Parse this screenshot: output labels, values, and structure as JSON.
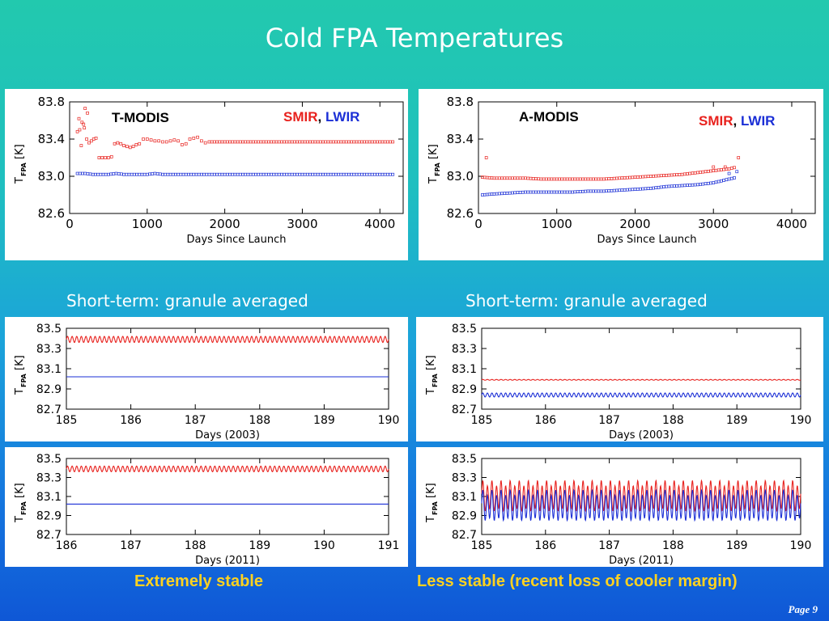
{
  "slide": {
    "title": "Cold FPA Temperatures",
    "page": "Page 9",
    "captions": {
      "left": "Extremely stable",
      "right": "Less stable (recent loss of cooler margin)"
    },
    "subtitles": {
      "left": "Short-term: granule averaged",
      "right": "Short-term: granule averaged"
    }
  },
  "colors": {
    "smir": "#e8221e",
    "lwir": "#1b2fd6",
    "caption": "#ffd21f"
  },
  "chart_data": [
    {
      "id": "tmodis-long",
      "type": "scatter",
      "instrument": "T-MODIS",
      "legend": {
        "smir": "SMIR",
        "sep": ",",
        "lwir": "LWIR"
      },
      "xlabel": "Days Since Launch",
      "ylabel_main": "T",
      "ylabel_sub": "FPA",
      "ylabel_unit": "[K]",
      "xlim": [
        0,
        4300
      ],
      "ylim": [
        82.6,
        83.8
      ],
      "xticks": [
        0,
        1000,
        2000,
        3000,
        4000
      ],
      "yticks": [
        "83.8",
        "83.4",
        "83.0",
        "82.6"
      ],
      "series": [
        {
          "name": "SMIR",
          "color": "#e8221e",
          "points": [
            [
              100,
              83.48
            ],
            [
              130,
              83.5
            ],
            [
              160,
              83.58
            ],
            [
              190,
              83.52
            ],
            [
              220,
              83.4
            ],
            [
              250,
              83.36
            ],
            [
              280,
              83.38
            ],
            [
              310,
              83.4
            ],
            [
              340,
              83.41
            ],
            [
              380,
              83.2
            ],
            [
              420,
              83.2
            ],
            [
              460,
              83.2
            ],
            [
              500,
              83.2
            ],
            [
              540,
              83.21
            ],
            [
              580,
              83.35
            ],
            [
              620,
              83.36
            ],
            [
              660,
              83.35
            ],
            [
              700,
              83.33
            ],
            [
              740,
              83.32
            ],
            [
              780,
              83.31
            ],
            [
              820,
              83.32
            ],
            [
              860,
              83.34
            ],
            [
              900,
              83.35
            ],
            [
              950,
              83.4
            ],
            [
              1000,
              83.4
            ],
            [
              1050,
              83.39
            ],
            [
              1100,
              83.38
            ],
            [
              1150,
              83.38
            ],
            [
              1200,
              83.37
            ],
            [
              1250,
              83.37
            ],
            [
              1300,
              83.38
            ],
            [
              1350,
              83.39
            ],
            [
              1400,
              83.38
            ],
            [
              1450,
              83.34
            ],
            [
              1500,
              83.35
            ],
            [
              1550,
              83.4
            ],
            [
              1600,
              83.41
            ],
            [
              1650,
              83.42
            ],
            [
              1700,
              83.38
            ],
            [
              1750,
              83.36
            ],
            [
              1800,
              83.37
            ],
            [
              1900,
              83.37
            ],
            [
              2000,
              83.37
            ],
            [
              2100,
              83.37
            ],
            [
              2200,
              83.37
            ],
            [
              2300,
              83.37
            ],
            [
              2400,
              83.37
            ],
            [
              2500,
              83.37
            ],
            [
              2600,
              83.37
            ],
            [
              2700,
              83.37
            ],
            [
              2800,
              83.37
            ],
            [
              2900,
              83.37
            ],
            [
              3000,
              83.37
            ],
            [
              3100,
              83.37
            ],
            [
              3200,
              83.37
            ],
            [
              3300,
              83.37
            ],
            [
              3400,
              83.37
            ],
            [
              3500,
              83.37
            ],
            [
              3600,
              83.37
            ],
            [
              3700,
              83.37
            ],
            [
              3800,
              83.37
            ],
            [
              3900,
              83.37
            ],
            [
              4000,
              83.37
            ],
            [
              4100,
              83.37
            ],
            [
              4200,
              83.37
            ]
          ],
          "outliers": [
            [
              200,
              83.73
            ],
            [
              230,
              83.68
            ],
            [
              180,
              83.56
            ],
            [
              150,
              83.33
            ],
            [
              120,
              83.62
            ]
          ]
        },
        {
          "name": "LWIR",
          "color": "#1b2fd6",
          "points": [
            [
              100,
              83.03
            ],
            [
              200,
              83.03
            ],
            [
              300,
              83.02
            ],
            [
              400,
              83.02
            ],
            [
              500,
              83.02
            ],
            [
              600,
              83.03
            ],
            [
              700,
              83.02
            ],
            [
              800,
              83.02
            ],
            [
              900,
              83.02
            ],
            [
              1000,
              83.02
            ],
            [
              1100,
              83.03
            ],
            [
              1200,
              83.02
            ],
            [
              1300,
              83.02
            ],
            [
              1400,
              83.02
            ],
            [
              1500,
              83.02
            ],
            [
              1600,
              83.02
            ],
            [
              1700,
              83.02
            ],
            [
              1800,
              83.02
            ],
            [
              1900,
              83.02
            ],
            [
              2000,
              83.02
            ],
            [
              2200,
              83.02
            ],
            [
              2400,
              83.02
            ],
            [
              2600,
              83.02
            ],
            [
              2800,
              83.02
            ],
            [
              3000,
              83.02
            ],
            [
              3200,
              83.02
            ],
            [
              3400,
              83.02
            ],
            [
              3600,
              83.02
            ],
            [
              3800,
              83.02
            ],
            [
              4000,
              83.02
            ],
            [
              4200,
              83.02
            ]
          ]
        }
      ]
    },
    {
      "id": "amodis-long",
      "type": "scatter",
      "instrument": "A-MODIS",
      "legend": {
        "smir": "SMIR",
        "sep": ",",
        "lwir": "LWIR"
      },
      "xlabel": "Days Since Launch",
      "ylabel_main": "T",
      "ylabel_sub": "FPA",
      "ylabel_unit": "[K]",
      "xlim": [
        0,
        4300
      ],
      "ylim": [
        82.6,
        83.8
      ],
      "xticks": [
        0,
        1000,
        2000,
        3000,
        4000
      ],
      "yticks": [
        "83.8",
        "83.4",
        "83.0",
        "82.6"
      ],
      "series": [
        {
          "name": "SMIR",
          "color": "#e8221e",
          "points": [
            [
              50,
              82.99
            ],
            [
              200,
              82.98
            ],
            [
              400,
              82.98
            ],
            [
              600,
              82.98
            ],
            [
              800,
              82.97
            ],
            [
              1000,
              82.97
            ],
            [
              1200,
              82.97
            ],
            [
              1400,
              82.97
            ],
            [
              1600,
              82.97
            ],
            [
              1800,
              82.98
            ],
            [
              2000,
              82.99
            ],
            [
              2200,
              83.0
            ],
            [
              2400,
              83.01
            ],
            [
              2600,
              83.02
            ],
            [
              2800,
              83.04
            ],
            [
              2900,
              83.05
            ],
            [
              3000,
              83.06
            ],
            [
              3100,
              83.07
            ],
            [
              3200,
              83.08
            ],
            [
              3300,
              83.1
            ]
          ],
          "outliers": [
            [
              100,
              83.2
            ],
            [
              3320,
              83.2
            ],
            [
              3000,
              83.1
            ],
            [
              3150,
              83.1
            ]
          ]
        },
        {
          "name": "LWIR",
          "color": "#1b2fd6",
          "points": [
            [
              50,
              82.8
            ],
            [
              200,
              82.81
            ],
            [
              400,
              82.82
            ],
            [
              600,
              82.83
            ],
            [
              800,
              82.83
            ],
            [
              1000,
              82.83
            ],
            [
              1200,
              82.83
            ],
            [
              1400,
              82.84
            ],
            [
              1600,
              82.84
            ],
            [
              1800,
              82.85
            ],
            [
              2000,
              82.86
            ],
            [
              2200,
              82.87
            ],
            [
              2400,
              82.89
            ],
            [
              2600,
              82.9
            ],
            [
              2800,
              82.91
            ],
            [
              2900,
              82.92
            ],
            [
              3000,
              82.93
            ],
            [
              3100,
              82.95
            ],
            [
              3200,
              82.97
            ],
            [
              3300,
              82.99
            ]
          ],
          "outliers": [
            [
              3200,
              83.03
            ],
            [
              3300,
              83.05
            ]
          ]
        }
      ]
    },
    {
      "id": "tmodis-2003",
      "type": "line",
      "xlabel": "Days (2003)",
      "ylabel_main": "T",
      "ylabel_sub": "FPA",
      "ylabel_unit": "[K]",
      "xlim": [
        185,
        190
      ],
      "ylim": [
        82.7,
        83.5
      ],
      "xticks": [
        "185",
        "186",
        "187",
        "188",
        "189",
        "190"
      ],
      "yticks": [
        "83.5",
        "83.3",
        "83.1",
        "82.9",
        "82.7"
      ],
      "series": [
        {
          "name": "SMIR",
          "color": "#e8221e",
          "mean": 83.39,
          "amplitude": 0.03,
          "cycles_per_day": 14
        },
        {
          "name": "LWIR",
          "color": "#1b2fd6",
          "mean": 83.02,
          "amplitude": 0.0,
          "cycles_per_day": 14
        }
      ]
    },
    {
      "id": "amodis-2003",
      "type": "line",
      "xlabel": "Days (2003)",
      "ylabel_main": "T",
      "ylabel_sub": "FPA",
      "ylabel_unit": "[K]",
      "xlim": [
        185,
        190
      ],
      "ylim": [
        82.7,
        83.5
      ],
      "xticks": [
        "185",
        "186",
        "187",
        "188",
        "189",
        "190"
      ],
      "yticks": [
        "83.5",
        "83.3",
        "83.1",
        "82.9",
        "82.7"
      ],
      "series": [
        {
          "name": "SMIR",
          "color": "#e8221e",
          "mean": 82.99,
          "amplitude": 0.004,
          "cycles_per_day": 14
        },
        {
          "name": "LWIR",
          "color": "#1b2fd6",
          "mean": 82.84,
          "amplitude": 0.02,
          "cycles_per_day": 14
        }
      ]
    },
    {
      "id": "tmodis-2011",
      "type": "line",
      "xlabel": "Days (2011)",
      "ylabel_main": "T",
      "ylabel_sub": "FPA",
      "ylabel_unit": "[K]",
      "xlim": [
        186,
        191
      ],
      "ylim": [
        82.7,
        83.5
      ],
      "xticks": [
        "186",
        "187",
        "188",
        "189",
        "190",
        "191"
      ],
      "yticks": [
        "83.5",
        "83.3",
        "83.1",
        "82.9",
        "82.7"
      ],
      "series": [
        {
          "name": "SMIR",
          "color": "#e8221e",
          "mean": 83.39,
          "amplitude": 0.03,
          "cycles_per_day": 14
        },
        {
          "name": "LWIR",
          "color": "#1b2fd6",
          "mean": 83.02,
          "amplitude": 0.0,
          "cycles_per_day": 14
        }
      ]
    },
    {
      "id": "amodis-2011",
      "type": "line",
      "xlabel": "Days (2011)",
      "ylabel_main": "T",
      "ylabel_sub": "FPA",
      "ylabel_unit": "[K]",
      "xlim": [
        185,
        190
      ],
      "ylim": [
        82.7,
        83.5
      ],
      "xticks": [
        "185",
        "186",
        "187",
        "188",
        "189",
        "190"
      ],
      "yticks": [
        "83.5",
        "83.3",
        "83.1",
        "82.9",
        "82.7"
      ],
      "series": [
        {
          "name": "SMIR",
          "color": "#e8221e",
          "mean": 83.1,
          "amplitude": 0.14,
          "cycles_per_day": 14
        },
        {
          "name": "LWIR",
          "color": "#1b2fd6",
          "mean": 83.0,
          "amplitude": 0.14,
          "cycles_per_day": 14
        }
      ]
    }
  ]
}
